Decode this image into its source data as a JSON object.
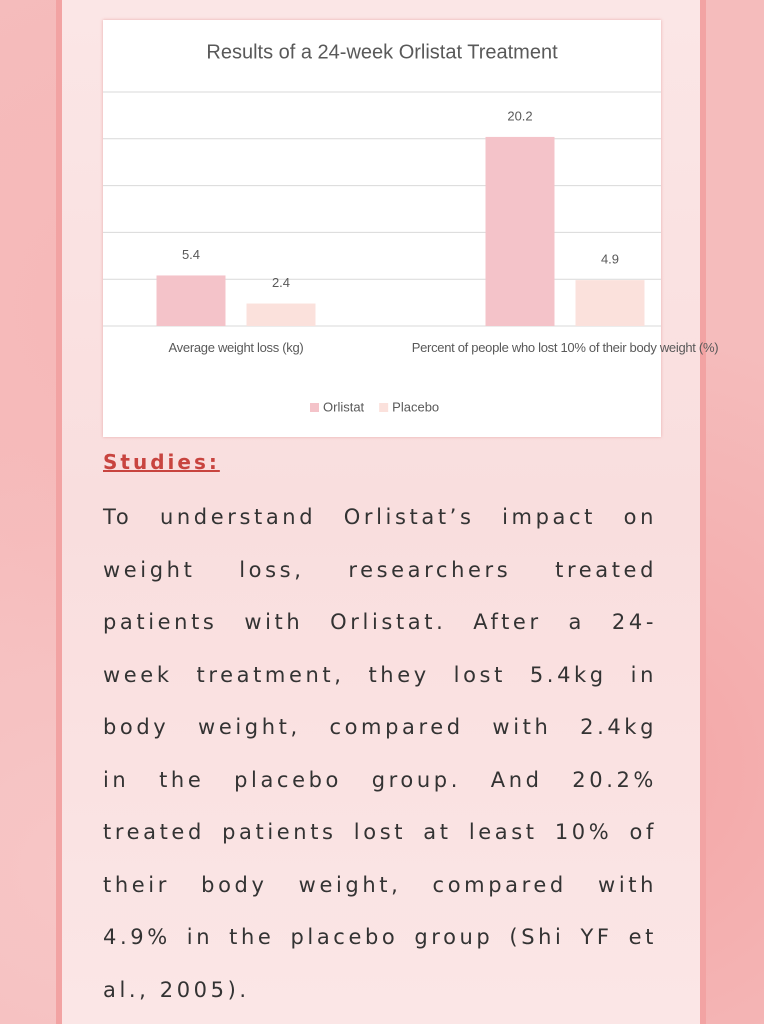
{
  "chart_data": {
    "type": "bar",
    "title": "Results of a 24-week Orlistat Treatment",
    "categories": [
      "Average weight loss (kg)",
      "Percent of people who lost 10% of their body weight (%)"
    ],
    "series": [
      {
        "name": "Orlistat",
        "color": "#f4c3c9",
        "values": [
          5.4,
          20.2
        ]
      },
      {
        "name": "Placebo",
        "color": "#fbe1dc",
        "values": [
          2.4,
          4.9
        ]
      }
    ],
    "ylim": [
      0,
      25
    ],
    "yticks": [
      0,
      5,
      10,
      15,
      20,
      25
    ],
    "grid": true,
    "legend": "bottom"
  },
  "heading": "Studies:",
  "paragraph_lines": [
    "To understand Orlistat’s impact on",
    "weight loss, researchers treated",
    "patients with Orlistat. After a 24-",
    "week treatment, they lost 5.4kg in",
    "body weight, compared with 2.4kg",
    "in the placebo group. And 20.2%",
    "treated patients lost at least 10% of",
    "their body weight, compared with",
    "4.9% in the placebo group (Shi YF et",
    "al., 2005)."
  ]
}
